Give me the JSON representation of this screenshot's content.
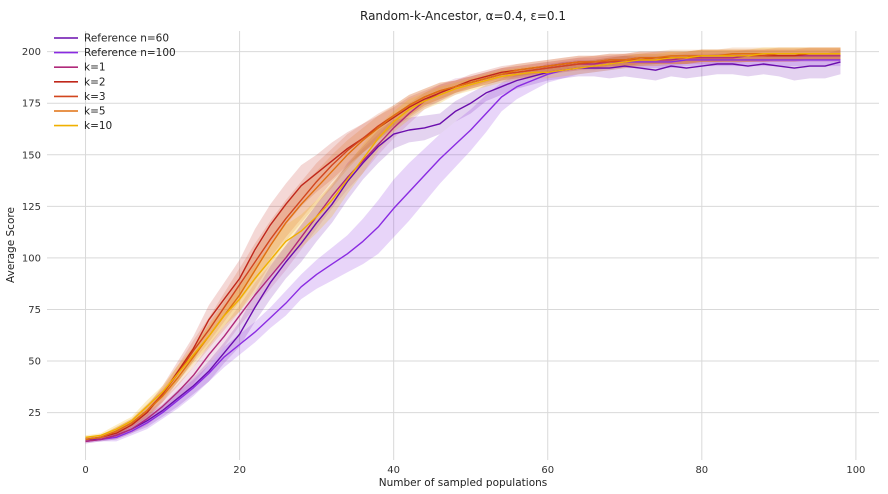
{
  "chart_data": {
    "type": "line",
    "title": "Random-k-Ancestor, α=0.4, ε=0.1",
    "xlabel": "Number of sampled populations",
    "ylabel": "Average Score",
    "xlim": [
      -5,
      103
    ],
    "ylim": [
      2,
      210
    ],
    "xticks": [
      0,
      20,
      40,
      60,
      80,
      100
    ],
    "yticks": [
      25,
      50,
      75,
      100,
      125,
      150,
      175,
      200
    ],
    "grid": true,
    "legend_position": "top-left",
    "series": [
      {
        "name": "Reference n=60",
        "color": "#6a0dad",
        "band_opacity": 0.18,
        "x": [
          0,
          2,
          4,
          6,
          8,
          10,
          12,
          14,
          16,
          18,
          20,
          22,
          24,
          26,
          28,
          30,
          32,
          34,
          36,
          38,
          40,
          42,
          44,
          46,
          48,
          50,
          52,
          54,
          56,
          58,
          60,
          62,
          64,
          66,
          68,
          70,
          72,
          74,
          76,
          78,
          80,
          82,
          84,
          86,
          88,
          90,
          92,
          94,
          96,
          98
        ],
        "y": [
          12,
          12,
          14,
          17,
          21,
          26,
          32,
          38,
          45,
          54,
          63,
          76,
          88,
          98,
          107,
          117,
          126,
          137,
          146,
          154,
          160,
          162,
          163,
          165,
          171,
          175,
          180,
          183,
          186,
          188,
          190,
          191,
          192,
          192,
          192,
          193,
          192,
          191,
          193,
          192,
          193,
          194,
          194,
          193,
          194,
          193,
          192,
          193,
          193,
          195
        ],
        "band": [
          1,
          1,
          2,
          2,
          3,
          3,
          4,
          4,
          5,
          5,
          6,
          7,
          8,
          8,
          9,
          9,
          9,
          9,
          8,
          8,
          7,
          6,
          6,
          5,
          5,
          5,
          4,
          4,
          4,
          4,
          4,
          4,
          4,
          4,
          5,
          5,
          5,
          5,
          5,
          5,
          5,
          5,
          5,
          5,
          5,
          5,
          6,
          6,
          6,
          6
        ]
      },
      {
        "name": "Reference n=100",
        "color": "#8a2be2",
        "band_opacity": 0.2,
        "x": [
          0,
          2,
          4,
          6,
          8,
          10,
          12,
          14,
          16,
          18,
          20,
          22,
          24,
          26,
          28,
          30,
          32,
          34,
          36,
          38,
          40,
          42,
          44,
          46,
          48,
          50,
          52,
          54,
          56,
          58,
          60,
          62,
          64,
          66,
          68,
          70,
          72,
          74,
          76,
          78,
          80,
          82,
          84,
          86,
          88,
          90,
          92,
          94,
          96,
          98
        ],
        "y": [
          11,
          12,
          13,
          16,
          20,
          25,
          31,
          37,
          44,
          52,
          58,
          64,
          71,
          78,
          86,
          92,
          97,
          102,
          108,
          115,
          124,
          132,
          140,
          148,
          155,
          162,
          170,
          178,
          183,
          186,
          189,
          191,
          192,
          193,
          194,
          195,
          195,
          195,
          195,
          196,
          196,
          196,
          196,
          196,
          196,
          196,
          196,
          196,
          196,
          196
        ],
        "band": [
          1,
          1,
          2,
          2,
          3,
          3,
          4,
          4,
          4,
          5,
          5,
          5,
          5,
          6,
          6,
          7,
          8,
          9,
          11,
          13,
          14,
          14,
          13,
          12,
          11,
          10,
          9,
          7,
          6,
          5,
          4,
          4,
          3,
          3,
          3,
          3,
          3,
          3,
          3,
          3,
          3,
          3,
          3,
          3,
          3,
          3,
          3,
          3,
          3,
          3
        ]
      },
      {
        "name": "k=1",
        "color": "#b0297a",
        "band_opacity": 0.15,
        "x": [
          0,
          2,
          4,
          6,
          8,
          10,
          12,
          14,
          16,
          18,
          20,
          22,
          24,
          26,
          28,
          30,
          32,
          34,
          36,
          38,
          40,
          42,
          44,
          46,
          48,
          50,
          52,
          54,
          56,
          58,
          60,
          62,
          64,
          66,
          68,
          70,
          72,
          74,
          76,
          78,
          80,
          82,
          84,
          86,
          88,
          90,
          92,
          94,
          96,
          98
        ],
        "y": [
          11,
          12,
          14,
          17,
          22,
          28,
          35,
          43,
          53,
          62,
          72,
          82,
          91,
          100,
          110,
          120,
          130,
          139,
          147,
          155,
          163,
          170,
          176,
          180,
          183,
          185,
          187,
          189,
          190,
          191,
          192,
          193,
          194,
          194,
          195,
          195,
          196,
          196,
          196,
          197,
          197,
          197,
          197,
          198,
          198,
          198,
          198,
          198,
          198,
          198
        ],
        "band": [
          1,
          1,
          2,
          2,
          3,
          3,
          4,
          4,
          5,
          5,
          5,
          6,
          6,
          6,
          6,
          6,
          6,
          6,
          6,
          5,
          5,
          5,
          4,
          4,
          4,
          3,
          3,
          3,
          3,
          3,
          3,
          3,
          3,
          3,
          3,
          3,
          3,
          3,
          3,
          3,
          3,
          3,
          3,
          3,
          3,
          3,
          3,
          3,
          3,
          3
        ]
      },
      {
        "name": "k=2",
        "color": "#c0271a",
        "band_opacity": 0.18,
        "x": [
          0,
          2,
          4,
          6,
          8,
          10,
          12,
          14,
          16,
          18,
          20,
          22,
          24,
          26,
          28,
          30,
          32,
          34,
          36,
          38,
          40,
          42,
          44,
          46,
          48,
          50,
          52,
          54,
          56,
          58,
          60,
          62,
          64,
          66,
          68,
          70,
          72,
          74,
          76,
          78,
          80,
          82,
          84,
          86,
          88,
          90,
          92,
          94,
          96,
          98
        ],
        "y": [
          12,
          13,
          15,
          19,
          25,
          34,
          45,
          56,
          70,
          80,
          90,
          104,
          116,
          126,
          135,
          141,
          147,
          153,
          158,
          163,
          168,
          173,
          177,
          180,
          183,
          186,
          188,
          190,
          191,
          192,
          193,
          194,
          195,
          195,
          196,
          196,
          197,
          197,
          197,
          197,
          198,
          198,
          198,
          198,
          198,
          198,
          198,
          199,
          199,
          199
        ],
        "band": [
          1,
          1,
          2,
          2,
          3,
          4,
          5,
          6,
          7,
          8,
          9,
          10,
          10,
          10,
          10,
          9,
          9,
          8,
          7,
          6,
          5,
          5,
          4,
          4,
          3,
          3,
          3,
          3,
          3,
          3,
          3,
          3,
          3,
          3,
          3,
          3,
          3,
          3,
          3,
          3,
          3,
          3,
          3,
          3,
          3,
          3,
          3,
          3,
          3,
          3
        ]
      },
      {
        "name": "k=3",
        "color": "#d2461e",
        "band_opacity": 0.18,
        "x": [
          0,
          2,
          4,
          6,
          8,
          10,
          12,
          14,
          16,
          18,
          20,
          22,
          24,
          26,
          28,
          30,
          32,
          34,
          36,
          38,
          40,
          42,
          44,
          46,
          48,
          50,
          52,
          54,
          56,
          58,
          60,
          62,
          64,
          66,
          68,
          70,
          72,
          74,
          76,
          78,
          80,
          82,
          84,
          86,
          88,
          90,
          92,
          94,
          96,
          98
        ],
        "y": [
          12,
          13,
          16,
          20,
          26,
          34,
          44,
          55,
          65,
          76,
          87,
          98,
          109,
          119,
          128,
          137,
          145,
          152,
          158,
          164,
          169,
          174,
          178,
          181,
          183,
          185,
          187,
          189,
          190,
          191,
          192,
          193,
          194,
          195,
          195,
          196,
          196,
          197,
          197,
          197,
          198,
          198,
          198,
          198,
          198,
          199,
          199,
          199,
          199,
          199
        ],
        "band": [
          1,
          1,
          2,
          2,
          3,
          3,
          4,
          5,
          6,
          7,
          8,
          9,
          9,
          9,
          9,
          9,
          8,
          8,
          7,
          6,
          5,
          5,
          4,
          4,
          3,
          3,
          3,
          3,
          3,
          3,
          3,
          3,
          3,
          3,
          3,
          3,
          3,
          3,
          3,
          3,
          3,
          3,
          3,
          3,
          3,
          3,
          3,
          3,
          3,
          3
        ]
      },
      {
        "name": "k=5",
        "color": "#e07010",
        "band_opacity": 0.18,
        "x": [
          0,
          2,
          4,
          6,
          8,
          10,
          12,
          14,
          16,
          18,
          20,
          22,
          24,
          26,
          28,
          30,
          32,
          34,
          36,
          38,
          40,
          42,
          44,
          46,
          48,
          50,
          52,
          54,
          56,
          58,
          60,
          62,
          64,
          66,
          68,
          70,
          72,
          74,
          76,
          78,
          80,
          82,
          84,
          86,
          88,
          90,
          92,
          94,
          96,
          98
        ],
        "y": [
          12,
          13,
          16,
          20,
          26,
          33,
          42,
          52,
          62,
          72,
          82,
          94,
          106,
          117,
          126,
          134,
          142,
          150,
          157,
          163,
          169,
          174,
          178,
          181,
          183,
          185,
          187,
          189,
          191,
          192,
          193,
          194,
          195,
          195,
          196,
          196,
          197,
          197,
          198,
          198,
          198,
          198,
          199,
          199,
          199,
          199,
          199,
          199,
          199,
          199
        ],
        "band": [
          1,
          1,
          2,
          2,
          3,
          3,
          4,
          5,
          6,
          7,
          8,
          9,
          9,
          9,
          9,
          8,
          8,
          7,
          6,
          6,
          5,
          5,
          4,
          4,
          3,
          3,
          3,
          3,
          3,
          3,
          3,
          3,
          3,
          3,
          3,
          3,
          3,
          3,
          3,
          3,
          3,
          3,
          3,
          3,
          3,
          3,
          3,
          3,
          3,
          3
        ]
      },
      {
        "name": "k=10",
        "color": "#f0b000",
        "band_opacity": 0.22,
        "x": [
          0,
          2,
          4,
          6,
          8,
          10,
          12,
          14,
          16,
          18,
          20,
          22,
          24,
          26,
          28,
          30,
          32,
          34,
          36,
          38,
          40,
          42,
          44,
          46,
          48,
          50,
          52,
          54,
          56,
          58,
          60,
          62,
          64,
          66,
          68,
          70,
          72,
          74,
          76,
          78,
          80,
          82,
          84,
          86,
          88,
          90,
          92,
          94,
          96,
          98
        ],
        "y": [
          13,
          14,
          17,
          21,
          28,
          35,
          44,
          53,
          62,
          72,
          80,
          90,
          99,
          108,
          113,
          120,
          128,
          138,
          148,
          158,
          166,
          172,
          176,
          179,
          182,
          184,
          186,
          188,
          189,
          190,
          190,
          191,
          192,
          193,
          194,
          195,
          196,
          196,
          197,
          197,
          198,
          198,
          198,
          198,
          199,
          199,
          199,
          199,
          199,
          199
        ],
        "band": [
          1,
          1,
          2,
          2,
          3,
          3,
          4,
          4,
          5,
          5,
          6,
          7,
          7,
          8,
          8,
          8,
          8,
          7,
          7,
          6,
          5,
          5,
          4,
          4,
          3,
          3,
          3,
          3,
          3,
          3,
          3,
          3,
          3,
          3,
          3,
          3,
          3,
          3,
          3,
          3,
          3,
          3,
          3,
          3,
          3,
          3,
          3,
          3,
          3,
          3
        ]
      }
    ]
  }
}
